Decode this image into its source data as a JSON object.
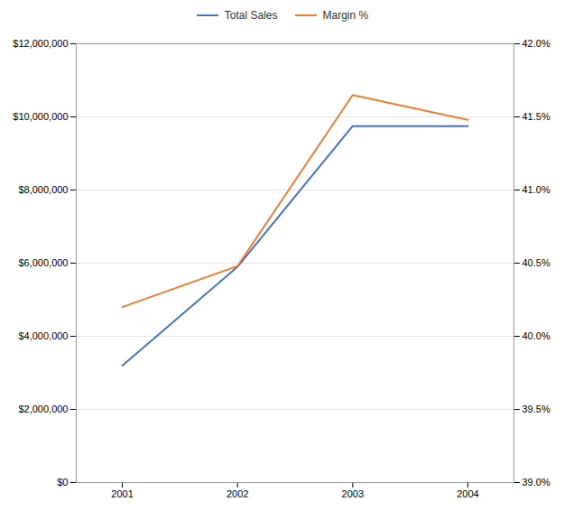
{
  "chart_data": {
    "type": "line",
    "x": [
      2001,
      2002,
      2003,
      2004
    ],
    "xlim": [
      2000.6,
      2004.4
    ],
    "xticks": [
      2001,
      2002,
      2003,
      2004
    ],
    "series": [
      {
        "name": "Total Sales",
        "color": "#4472C4",
        "values": [
          3200000,
          5900000,
          9750000,
          9750000
        ],
        "axis": "y"
      },
      {
        "name": "Margin %",
        "color": "#ED7D31",
        "values": [
          40.2,
          40.48,
          41.65,
          41.48
        ],
        "axis": "y2"
      }
    ],
    "ylim": [
      0,
      12000000
    ],
    "yticks": [
      {
        "value": 0,
        "label": "$0"
      },
      {
        "value": 2000000,
        "label": "$2,000,000"
      },
      {
        "value": 4000000,
        "label": "$4,000,000"
      },
      {
        "value": 6000000,
        "label": "$6,000,000"
      },
      {
        "value": 8000000,
        "label": "$8,000,000"
      },
      {
        "value": 10000000,
        "label": "$10,000,000"
      },
      {
        "value": 12000000,
        "label": "$12,000,000"
      }
    ],
    "y2lim": [
      39.0,
      42.0
    ],
    "y2ticks": [
      {
        "value": 39.0,
        "label": "39.0%"
      },
      {
        "value": 39.5,
        "label": "39.5%"
      },
      {
        "value": 40.0,
        "label": "40.0%"
      },
      {
        "value": 40.5,
        "label": "40.5%"
      },
      {
        "value": 41.0,
        "label": "41.0%"
      },
      {
        "value": 41.5,
        "label": "41.5%"
      },
      {
        "value": 42.0,
        "label": "42.0%"
      }
    ],
    "grid": true,
    "legend": "top"
  }
}
